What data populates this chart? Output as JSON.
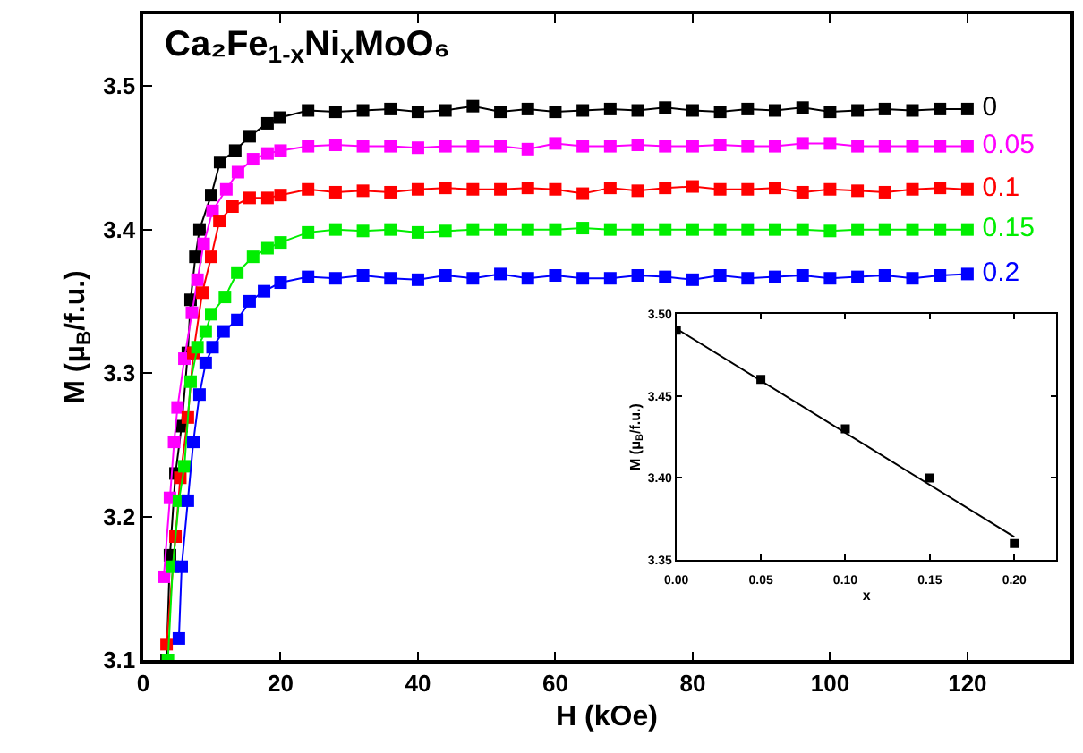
{
  "chart_data": [
    {
      "type": "line",
      "title": "Ca₂Fe$_{1-x}$Ni$_{x}$MoO₆",
      "xlabel": "H (kOe)",
      "ylabel": "M (μ$_{B}$/f.u.)",
      "marker": "square",
      "line_style": "solid",
      "legend": false,
      "grid": false,
      "xlim": [
        0,
        135
      ],
      "ylim": [
        3.1,
        3.55
      ],
      "xticks": [
        0,
        20,
        40,
        60,
        80,
        100,
        120
      ],
      "yticks": [
        3.1,
        3.2,
        3.3,
        3.4,
        3.5
      ],
      "series": [
        {
          "name": "0",
          "color": "#000000",
          "x": [
            3.4,
            3.9,
            4.7,
            5.6,
            6.5,
            6.9,
            7.6,
            8.2,
            9.9,
            11.2,
            13.4,
            15.5,
            18.1,
            19.9,
            24,
            28,
            32,
            36,
            40,
            44,
            48,
            52,
            56,
            60,
            64,
            68,
            72,
            76,
            80,
            84,
            88,
            92,
            96,
            100,
            104,
            108,
            112,
            116,
            120
          ],
          "values": [
            3.1,
            3.173,
            3.23,
            3.263,
            3.314,
            3.351,
            3.381,
            3.4,
            3.424,
            3.447,
            3.455,
            3.465,
            3.474,
            3.478,
            3.483,
            3.482,
            3.483,
            3.484,
            3.482,
            3.483,
            3.486,
            3.482,
            3.484,
            3.482,
            3.483,
            3.484,
            3.483,
            3.485,
            3.483,
            3.482,
            3.484,
            3.483,
            3.485,
            3.482,
            3.483,
            3.484,
            3.483,
            3.484,
            3.484
          ]
        },
        {
          "name": "0.05",
          "color": "#ff00ff",
          "x": [
            3.0,
            3.9,
            4.5,
            5.0,
            6.0,
            7.1,
            7.9,
            8.8,
            10.1,
            12.1,
            13.8,
            16.0,
            18.1,
            20.0,
            24,
            28,
            32,
            36,
            40,
            44,
            48,
            52,
            56,
            60,
            64,
            68,
            72,
            76,
            80,
            84,
            88,
            92,
            96,
            100,
            104,
            108,
            112,
            116,
            120
          ],
          "values": [
            3.158,
            3.213,
            3.252,
            3.276,
            3.31,
            3.342,
            3.365,
            3.39,
            3.413,
            3.428,
            3.44,
            3.449,
            3.453,
            3.455,
            3.458,
            3.459,
            3.458,
            3.458,
            3.457,
            3.458,
            3.458,
            3.458,
            3.456,
            3.46,
            3.458,
            3.458,
            3.459,
            3.458,
            3.458,
            3.459,
            3.458,
            3.458,
            3.46,
            3.46,
            3.458,
            3.458,
            3.458,
            3.458,
            3.458
          ]
        },
        {
          "name": "0.1",
          "color": "#ff0000",
          "x": [
            3.4,
            4.7,
            5.4,
            6.5,
            7.3,
            8.6,
            9.9,
            11.1,
            13.0,
            15.5,
            18.1,
            20.0,
            24,
            28,
            32,
            36,
            40,
            44,
            48,
            52,
            56,
            60,
            64,
            68,
            72,
            76,
            80,
            84,
            88,
            92,
            96,
            100,
            104,
            108,
            112,
            116,
            120
          ],
          "values": [
            3.111,
            3.186,
            3.227,
            3.269,
            3.314,
            3.356,
            3.381,
            3.406,
            3.416,
            3.422,
            3.422,
            3.424,
            3.428,
            3.426,
            3.427,
            3.426,
            3.428,
            3.429,
            3.428,
            3.428,
            3.429,
            3.428,
            3.425,
            3.429,
            3.427,
            3.429,
            3.43,
            3.428,
            3.428,
            3.429,
            3.426,
            3.428,
            3.427,
            3.426,
            3.428,
            3.429,
            3.428
          ]
        },
        {
          "name": "0.15",
          "color": "#00ee00",
          "x": [
            3.6,
            4.3,
            5.2,
            6.0,
            6.9,
            7.9,
            9.1,
            9.9,
            11.9,
            13.7,
            16.0,
            18.1,
            20.0,
            24,
            28,
            32,
            36,
            40,
            44,
            48,
            52,
            56,
            60,
            64,
            68,
            72,
            76,
            80,
            84,
            88,
            92,
            96,
            100,
            104,
            108,
            112,
            116,
            120
          ],
          "values": [
            3.1,
            3.165,
            3.211,
            3.235,
            3.294,
            3.318,
            3.329,
            3.341,
            3.353,
            3.37,
            3.381,
            3.387,
            3.391,
            3.398,
            3.4,
            3.399,
            3.4,
            3.398,
            3.399,
            3.4,
            3.4,
            3.4,
            3.4,
            3.401,
            3.4,
            3.4,
            3.4,
            3.4,
            3.4,
            3.4,
            3.4,
            3.4,
            3.399,
            3.4,
            3.4,
            3.4,
            3.4,
            3.4
          ]
        },
        {
          "name": "0.2",
          "color": "#0000ff",
          "x": [
            5.2,
            5.6,
            6.5,
            7.3,
            8.2,
            9.1,
            10.1,
            11.7,
            13.7,
            15.5,
            17.6,
            20.0,
            24,
            28,
            32,
            36,
            40,
            44,
            48,
            52,
            56,
            60,
            64,
            68,
            72,
            76,
            80,
            84,
            88,
            92,
            96,
            100,
            104,
            108,
            112,
            116,
            120
          ],
          "values": [
            3.115,
            3.165,
            3.211,
            3.252,
            3.285,
            3.307,
            3.318,
            3.329,
            3.337,
            3.35,
            3.357,
            3.363,
            3.367,
            3.366,
            3.368,
            3.366,
            3.365,
            3.368,
            3.366,
            3.369,
            3.366,
            3.368,
            3.366,
            3.366,
            3.368,
            3.367,
            3.365,
            3.368,
            3.366,
            3.367,
            3.368,
            3.366,
            3.367,
            3.368,
            3.366,
            3.368,
            3.369
          ]
        }
      ]
    },
    {
      "type": "scatter",
      "xlabel": "x",
      "ylabel": "M (μ$_{B}$/f.u.)",
      "marker": "square",
      "legend": false,
      "grid": false,
      "xlim": [
        0,
        0.225
      ],
      "ylim": [
        3.35,
        3.5
      ],
      "xticks": [
        {
          "value": 0,
          "label": "0.00"
        },
        0.05,
        {
          "value": 0.1,
          "label": "0.10"
        },
        0.15,
        {
          "value": 0.2,
          "label": "0.20"
        }
      ],
      "yticks": [
        {
          "value": 3.35,
          "label": "3.35"
        },
        {
          "value": 3.4,
          "label": "3.40"
        },
        3.45,
        {
          "value": 3.5,
          "label": "3.50"
        }
      ],
      "series": [
        {
          "color": "#000000",
          "x": [
            0,
            0.05,
            0.1,
            0.15,
            0.2
          ],
          "values": [
            3.49,
            3.46,
            3.43,
            3.4,
            3.36
          ]
        },
        {
          "type": "line",
          "marker": "none",
          "color": "#000000",
          "x": [
            0,
            0.2
          ],
          "values": [
            3.491,
            3.364
          ]
        }
      ]
    }
  ]
}
